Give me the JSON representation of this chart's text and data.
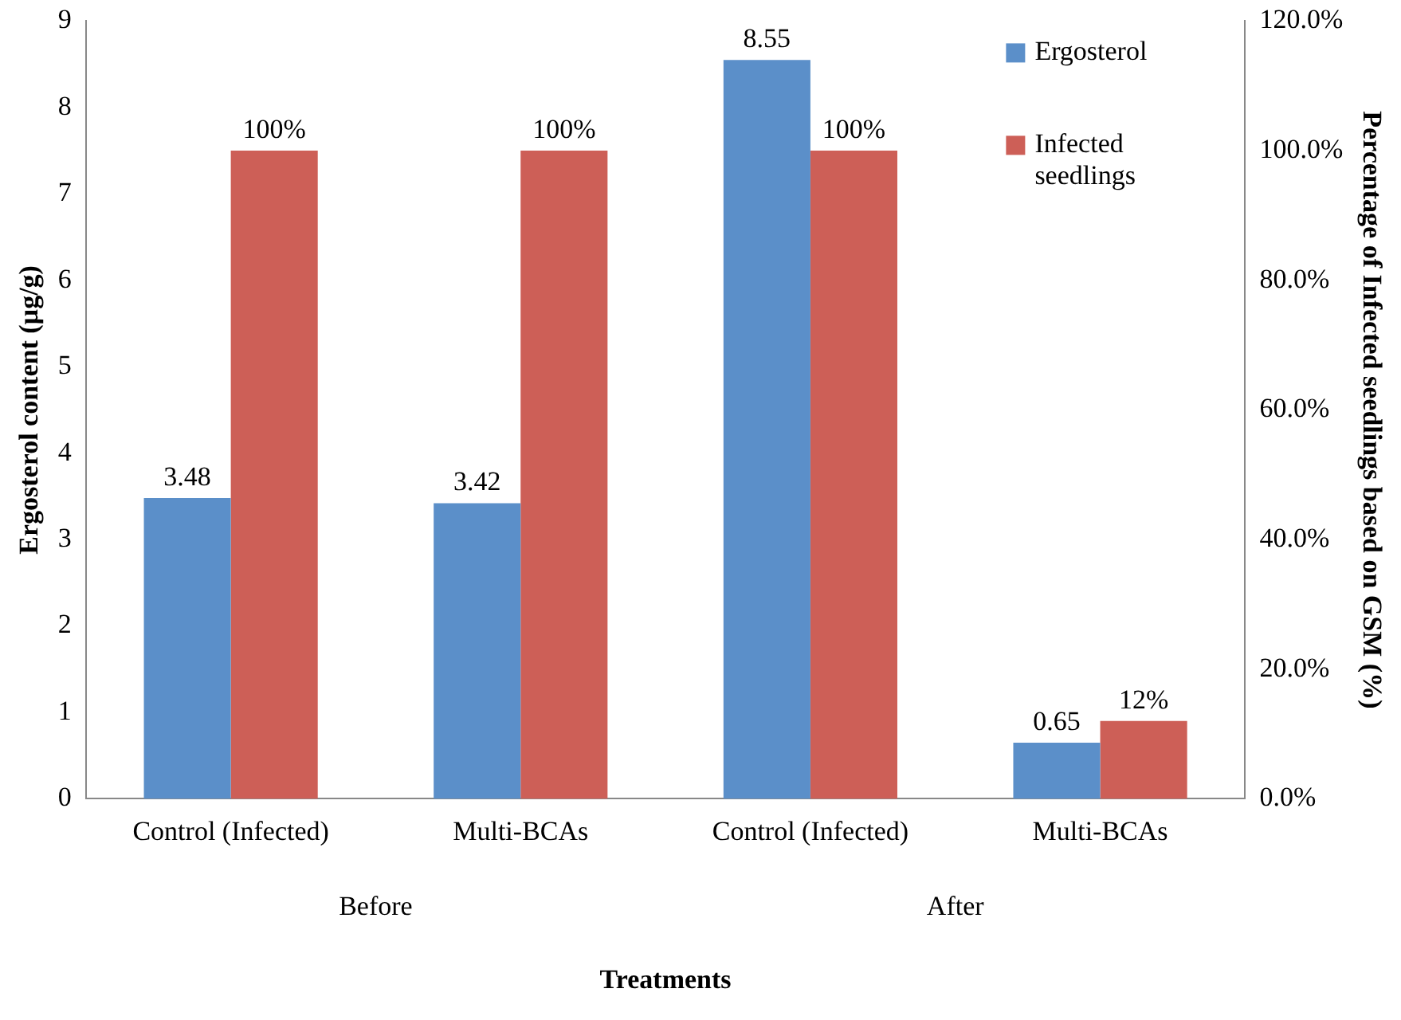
{
  "chart_data": {
    "type": "bar",
    "xlabel": "Treatments",
    "ylabel": "Ergosterol content (µg/g)",
    "y2label": "Percentage of Infected seedlings based on GSM (%)",
    "categories": [
      "Control (Infected)",
      "Multi-BCAs",
      "Control (Infected)",
      "Multi-BCAs"
    ],
    "series": [
      {
        "name": "Ergosterol",
        "color": "#5b8fc9",
        "values": [
          3.48,
          3.42,
          8.55,
          0.65
        ],
        "value_labels": [
          "3.48",
          "3.42",
          "8.55",
          "0.65"
        ]
      },
      {
        "name": "Infected seedlings",
        "color": "#cd5f57",
        "axis": "y2",
        "values": [
          100,
          100,
          100,
          12
        ],
        "value_labels": [
          "100%",
          "100%",
          "100%",
          "12%"
        ]
      }
    ],
    "annotations": [
      "Before",
      "After"
    ],
    "ylim": [
      0,
      9
    ],
    "yticks": [
      0,
      1,
      2,
      3,
      4,
      5,
      6,
      7,
      8,
      9
    ],
    "y2lim": [
      0,
      120
    ],
    "y2ticks": [
      {
        "value": 0,
        "label": "0.0%"
      },
      {
        "value": 20,
        "label": "20.0%"
      },
      {
        "value": 40,
        "label": "40.0%"
      },
      {
        "value": 60,
        "label": "60.0%"
      },
      {
        "value": 80,
        "label": "80.0%"
      },
      {
        "value": 100,
        "label": "100.0%"
      },
      {
        "value": 120,
        "label": "120.0%"
      }
    ],
    "grid": false,
    "legend": "top right"
  }
}
